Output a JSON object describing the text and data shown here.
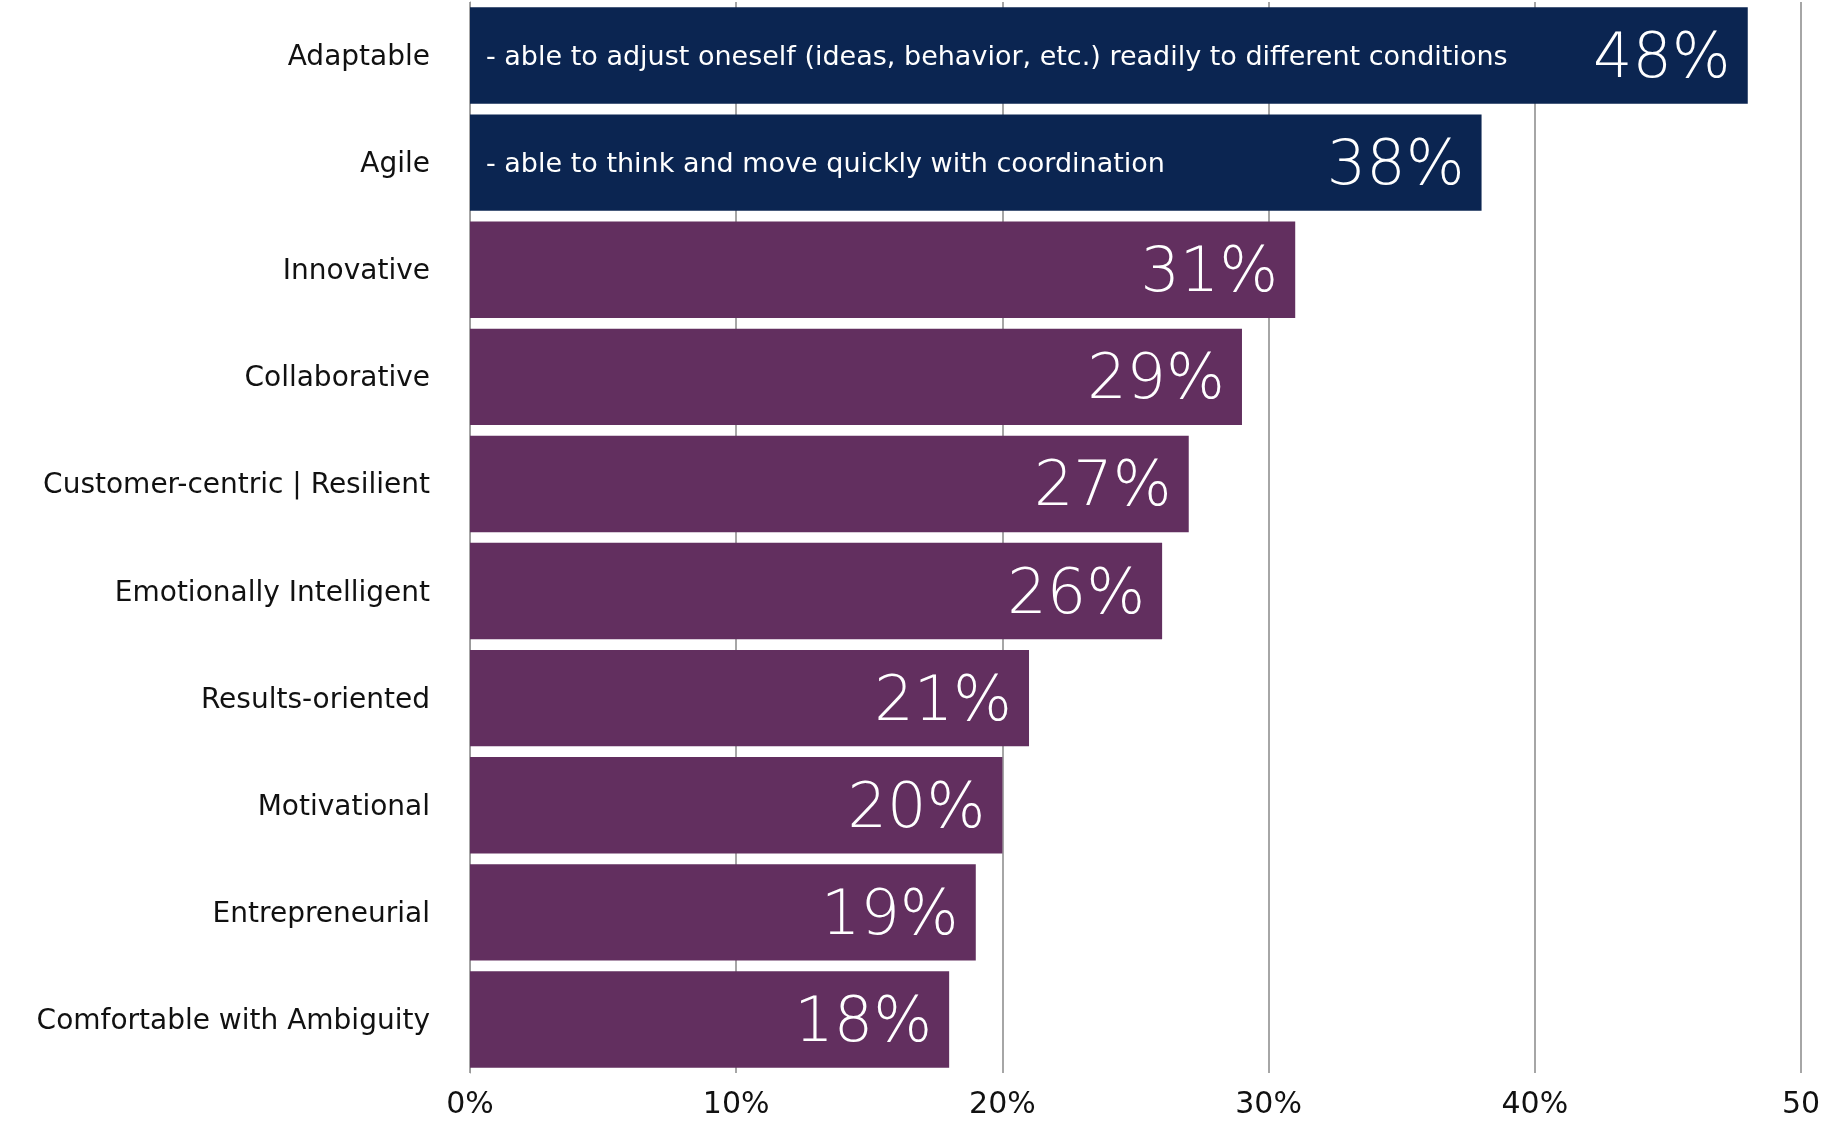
{
  "chart_data": {
    "type": "bar",
    "orientation": "horizontal",
    "categories": [
      "Adaptable",
      "Agile",
      "Innovative",
      "Collaborative",
      "Customer-centric | Resilient",
      "Emotionally Intelligent",
      "Results-oriented",
      "Motivational",
      "Entrepreneurial",
      "Comfortable with Ambiguity"
    ],
    "values": [
      48,
      38,
      31,
      29,
      27,
      26,
      21,
      20,
      19,
      18
    ],
    "colors": [
      "#0b2551",
      "#0b2551",
      "#622f5f",
      "#622f5f",
      "#622f5f",
      "#622f5f",
      "#622f5f",
      "#622f5f",
      "#622f5f",
      "#622f5f"
    ],
    "value_labels": [
      "48%",
      "38%",
      "31%",
      "29%",
      "27%",
      "26%",
      "21%",
      "20%",
      "19%",
      "18%"
    ],
    "xlim": [
      0,
      50
    ],
    "xticks": [
      {
        "value": 0,
        "label": "0%"
      },
      {
        "value": 10,
        "label": "10%"
      },
      {
        "value": 20,
        "label": "20%"
      },
      {
        "value": 30,
        "label": "30%"
      },
      {
        "value": 40,
        "label": "40%"
      },
      {
        "value": 50,
        "label": "50"
      }
    ],
    "grid": "x",
    "annotations": [
      {
        "text": "- able to adjust oneself (ideas, behavior, etc.) readily to different conditions",
        "y": "Adaptable"
      },
      {
        "text": "- able to think and move quickly with coordination",
        "y": "Agile"
      }
    ]
  }
}
